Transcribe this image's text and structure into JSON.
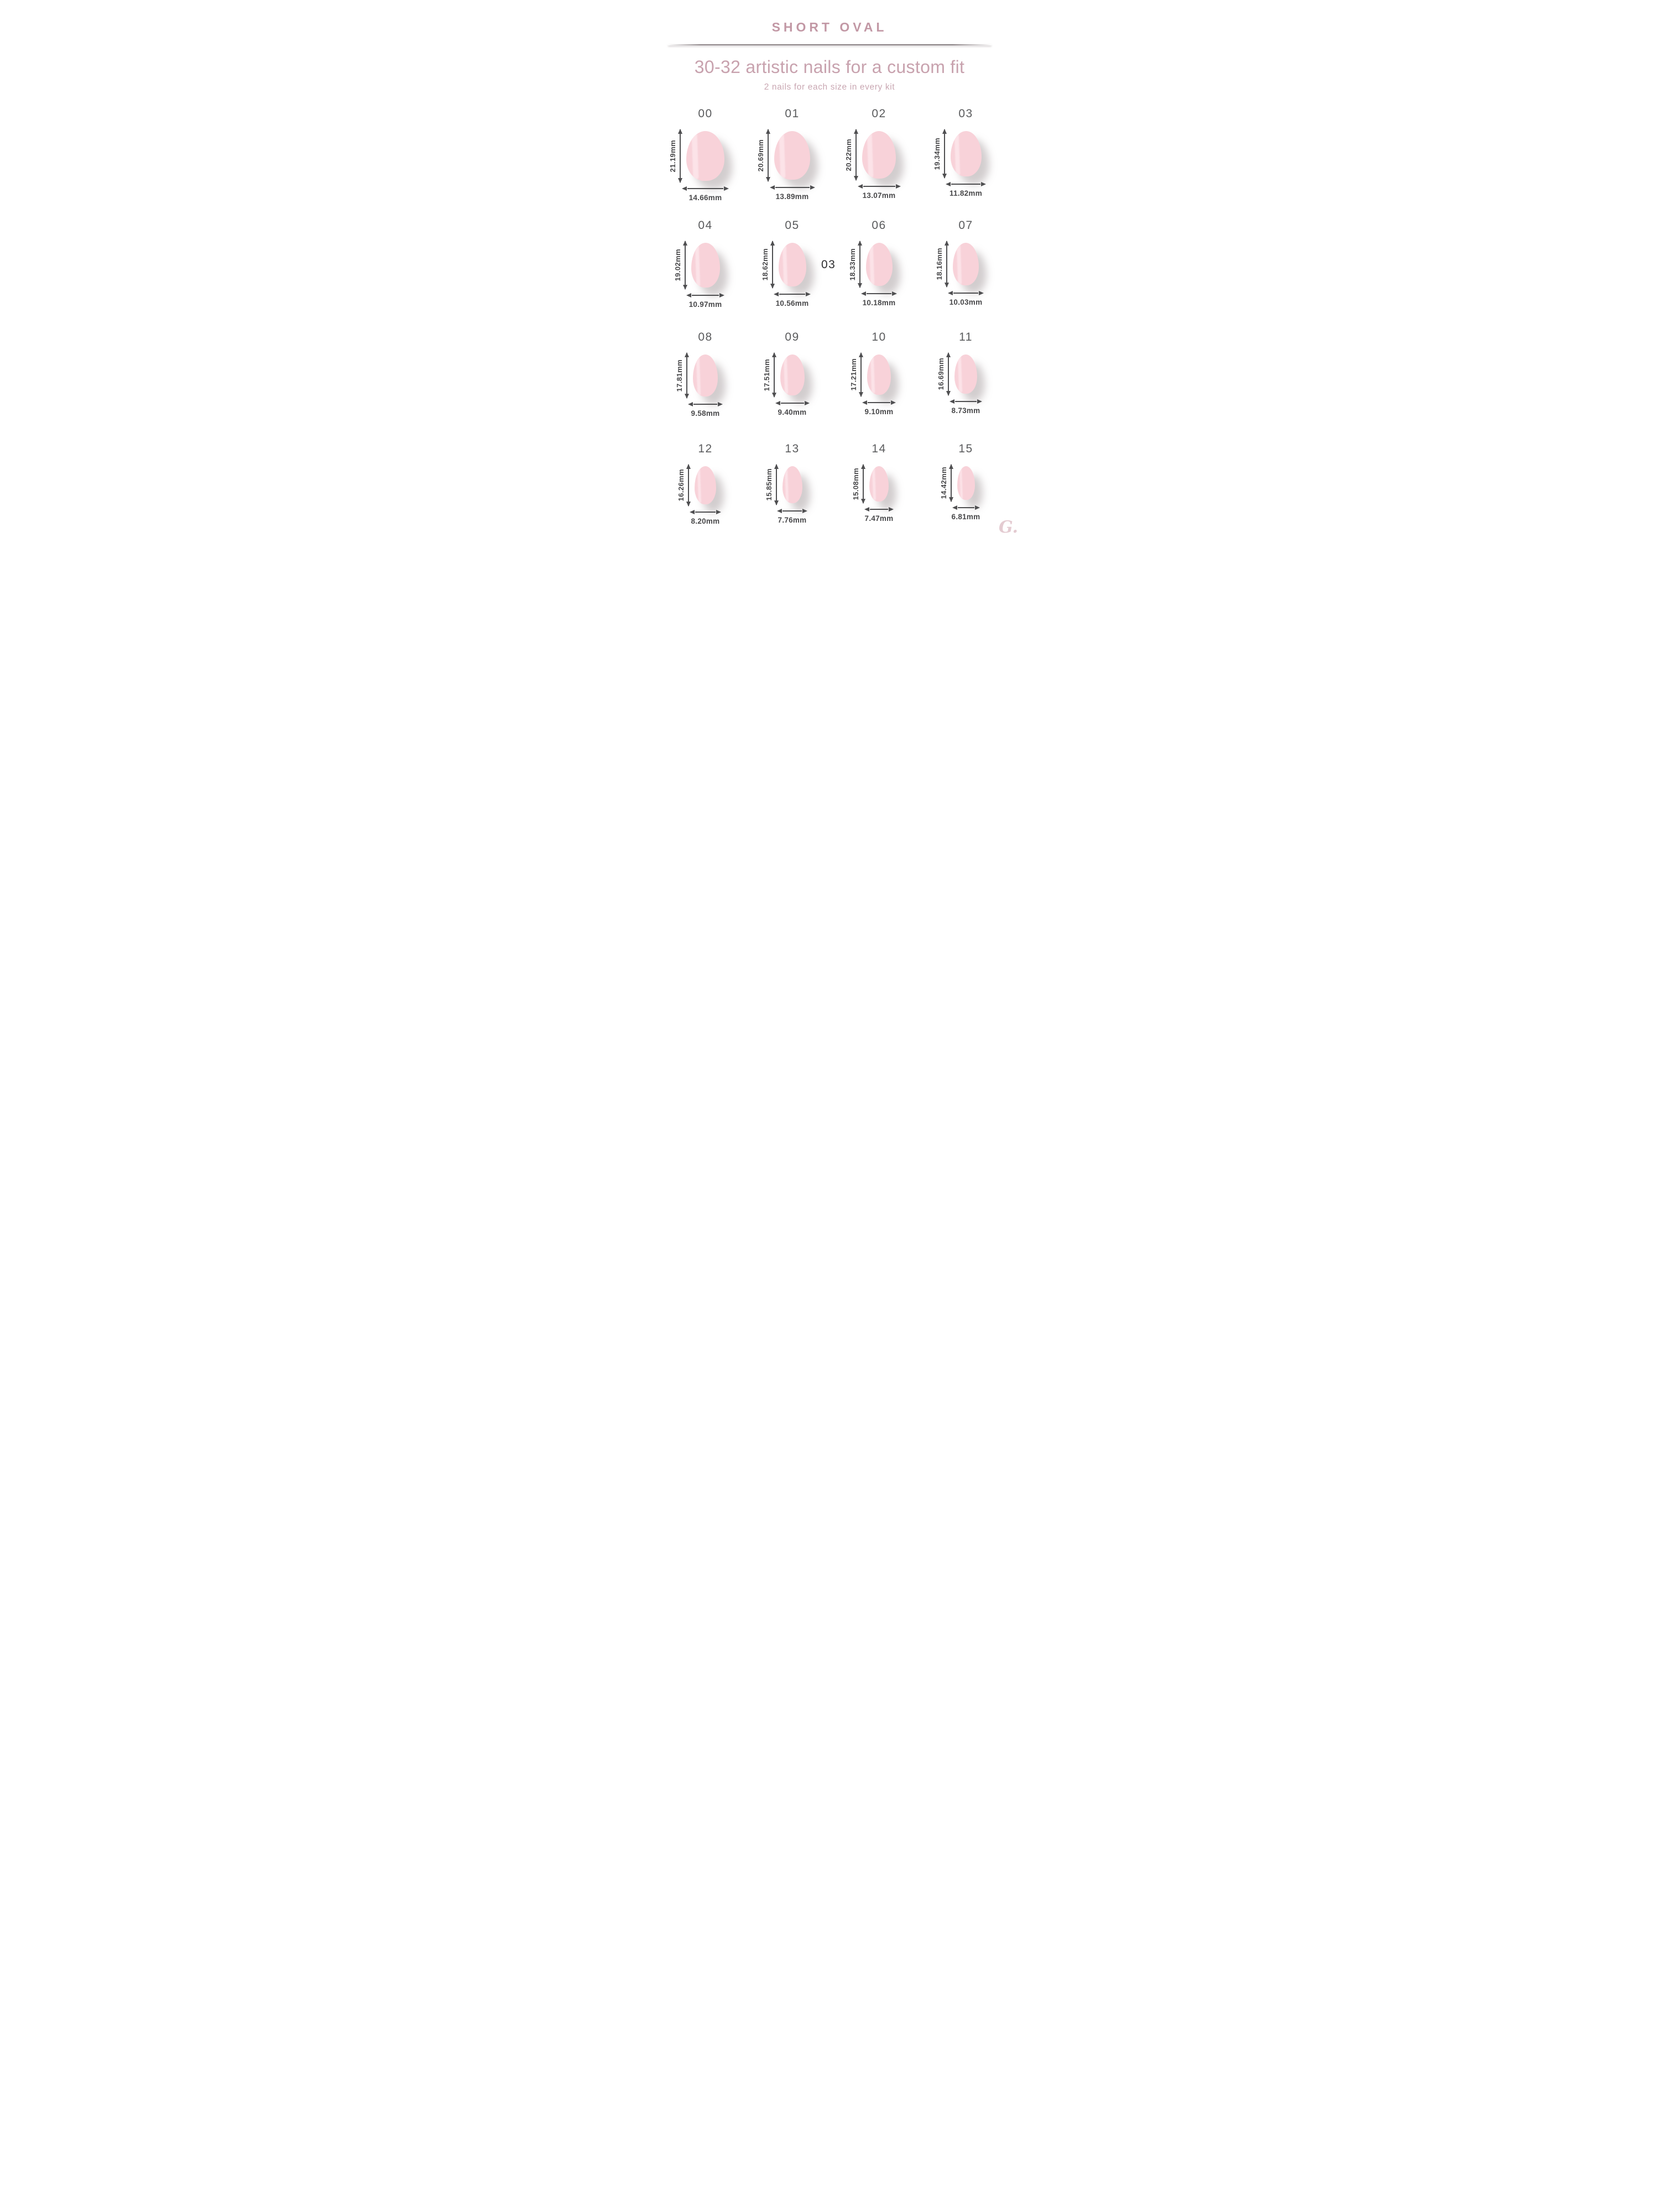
{
  "header": {
    "title": "SHORT OVAL"
  },
  "intro": {
    "heading": "30-32 artistic nails for a custom fit",
    "subheading": "2 nails for each size in every kit"
  },
  "annotation": {
    "text": "03"
  },
  "logo": {
    "text": "G."
  },
  "colors": {
    "title_pink": "#c298a5",
    "heading_pink": "#c8a2ae",
    "subheading_pink": "#c9a7b2",
    "nail_fill": "#f8d2d9",
    "nail_highlight": "#fce4e9",
    "measurement_text": "#48484a",
    "size_number_text": "#5a5b5d",
    "arrow": "#4f4f51",
    "logo_pink": "#e4cbd1"
  },
  "sizes": [
    {
      "label": "00",
      "length_mm": 21.19,
      "width_mm": 14.66,
      "length_label": "21.19mm",
      "width_label": "14.66mm"
    },
    {
      "label": "01",
      "length_mm": 20.69,
      "width_mm": 13.89,
      "length_label": "20.69mm",
      "width_label": "13.89mm"
    },
    {
      "label": "02",
      "length_mm": 20.22,
      "width_mm": 13.07,
      "length_label": "20.22mm",
      "width_label": "13.07mm"
    },
    {
      "label": "03",
      "length_mm": 19.34,
      "width_mm": 11.82,
      "length_label": "19.34mm",
      "width_label": "11.82mm"
    },
    {
      "label": "04",
      "length_mm": 19.02,
      "width_mm": 10.97,
      "length_label": "19.02mm",
      "width_label": "10.97mm"
    },
    {
      "label": "05",
      "length_mm": 18.62,
      "width_mm": 10.56,
      "length_label": "18.62mm",
      "width_label": "10.56mm"
    },
    {
      "label": "06",
      "length_mm": 18.33,
      "width_mm": 10.18,
      "length_label": "18.33mm",
      "width_label": "10.18mm"
    },
    {
      "label": "07",
      "length_mm": 18.16,
      "width_mm": 10.03,
      "length_label": "18.16mm",
      "width_label": "10.03mm"
    },
    {
      "label": "08",
      "length_mm": 17.81,
      "width_mm": 9.58,
      "length_label": "17.81mm",
      "width_label": "9.58mm"
    },
    {
      "label": "09",
      "length_mm": 17.51,
      "width_mm": 9.4,
      "length_label": "17.51mm",
      "width_label": "9.40mm"
    },
    {
      "label": "10",
      "length_mm": 17.21,
      "width_mm": 9.1,
      "length_label": "17.21mm",
      "width_label": "9.10mm"
    },
    {
      "label": "11",
      "length_mm": 16.69,
      "width_mm": 8.73,
      "length_label": "16.69mm",
      "width_label": "8.73mm"
    },
    {
      "label": "12",
      "length_mm": 16.26,
      "width_mm": 8.2,
      "length_label": "16.26mm",
      "width_label": "8.20mm"
    },
    {
      "label": "13",
      "length_mm": 15.85,
      "width_mm": 7.76,
      "length_label": "15.85mm",
      "width_label": "7.76mm"
    },
    {
      "label": "14",
      "length_mm": 15.08,
      "width_mm": 7.47,
      "length_label": "15.08mm",
      "width_label": "7.47mm"
    },
    {
      "label": "15",
      "length_mm": 14.42,
      "width_mm": 6.81,
      "length_label": "14.42mm",
      "width_label": "6.81mm"
    }
  ]
}
